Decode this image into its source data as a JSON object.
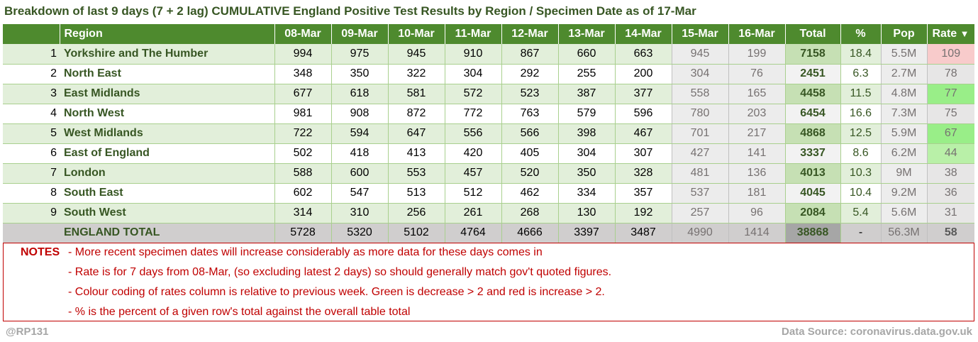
{
  "title": "Breakdown of last 9 days (7 + 2 lag) CUMULATIVE England Positive Test Results by Region / Specimen Date as of 17-Mar",
  "headers": {
    "region": "Region",
    "days": [
      "08-Mar",
      "09-Mar",
      "10-Mar",
      "11-Mar",
      "12-Mar",
      "13-Mar",
      "14-Mar",
      "15-Mar",
      "16-Mar"
    ],
    "total": "Total",
    "pct": "%",
    "pop": "Pop",
    "rate": "Rate",
    "rate_sort_icon": "sort-down-icon"
  },
  "rows": [
    {
      "idx": "1",
      "name": "Yorkshire and The Humber",
      "values": [
        "994",
        "975",
        "945",
        "910",
        "867",
        "660",
        "663",
        "945",
        "199"
      ],
      "total": "7158",
      "pct": "18.4",
      "pop": "5.5M",
      "rate": "109",
      "rate_status": "increase"
    },
    {
      "idx": "2",
      "name": "North East",
      "values": [
        "348",
        "350",
        "322",
        "304",
        "292",
        "255",
        "200",
        "304",
        "76"
      ],
      "total": "2451",
      "pct": "6.3",
      "pop": "2.7M",
      "rate": "78",
      "rate_status": "neutral"
    },
    {
      "idx": "3",
      "name": "East Midlands",
      "values": [
        "677",
        "618",
        "581",
        "572",
        "523",
        "387",
        "377",
        "558",
        "165"
      ],
      "total": "4458",
      "pct": "11.5",
      "pop": "4.8M",
      "rate": "77",
      "rate_status": "decrease"
    },
    {
      "idx": "4",
      "name": "North West",
      "values": [
        "981",
        "908",
        "872",
        "772",
        "763",
        "579",
        "596",
        "780",
        "203"
      ],
      "total": "6454",
      "pct": "16.6",
      "pop": "7.3M",
      "rate": "75",
      "rate_status": "neutral"
    },
    {
      "idx": "5",
      "name": "West Midlands",
      "values": [
        "722",
        "594",
        "647",
        "556",
        "566",
        "398",
        "467",
        "701",
        "217"
      ],
      "total": "4868",
      "pct": "12.5",
      "pop": "5.9M",
      "rate": "67",
      "rate_status": "decrease"
    },
    {
      "idx": "6",
      "name": "East of England",
      "values": [
        "502",
        "418",
        "413",
        "420",
        "405",
        "304",
        "307",
        "427",
        "141"
      ],
      "total": "3337",
      "pct": "8.6",
      "pop": "6.2M",
      "rate": "44",
      "rate_status": "decrease-light"
    },
    {
      "idx": "7",
      "name": "London",
      "values": [
        "588",
        "600",
        "553",
        "457",
        "520",
        "350",
        "328",
        "481",
        "136"
      ],
      "total": "4013",
      "pct": "10.3",
      "pop": "9M",
      "rate": "38",
      "rate_status": "neutral"
    },
    {
      "idx": "8",
      "name": "South East",
      "values": [
        "602",
        "547",
        "513",
        "512",
        "462",
        "334",
        "357",
        "537",
        "181"
      ],
      "total": "4045",
      "pct": "10.4",
      "pop": "9.2M",
      "rate": "36",
      "rate_status": "neutral"
    },
    {
      "idx": "9",
      "name": "South West",
      "values": [
        "314",
        "310",
        "256",
        "261",
        "268",
        "130",
        "192",
        "257",
        "96"
      ],
      "total": "2084",
      "pct": "5.4",
      "pop": "5.6M",
      "rate": "31",
      "rate_status": "neutral"
    }
  ],
  "total_row": {
    "name": "ENGLAND TOTAL",
    "values": [
      "5728",
      "5320",
      "5102",
      "4764",
      "4666",
      "3397",
      "3487",
      "4990",
      "1414"
    ],
    "total": "38868",
    "pct": "-",
    "pop": "56.3M",
    "rate": "58"
  },
  "notes": {
    "label": "NOTES",
    "items": [
      "- More recent specimen dates will increase considerably as more data for these days comes in",
      "- Rate is for 7 days from 08-Mar, (so excluding latest 2 days) so should generally match gov't quoted figures.",
      "- Colour coding of rates column is relative to previous week. Green is decrease > 2 and red is increase > 2.",
      "- % is the percent of a given row's total against the overall table total"
    ]
  },
  "footer": {
    "author": "@RP131",
    "source": "Data Source: coronavirus.data.gov.uk"
  },
  "colors": {
    "header_bg": "#4e8a2e",
    "region_text": "#375623",
    "notes_red": "#c00000",
    "rate_increase": "#f8cbcb",
    "rate_decrease": "#99ee88"
  }
}
